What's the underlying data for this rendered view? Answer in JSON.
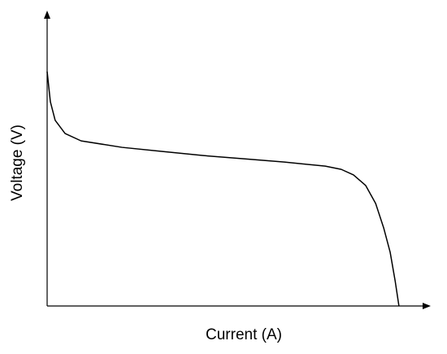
{
  "chart_data": {
    "type": "line",
    "x_label": "Current (A)",
    "y_label": "Voltage (V)",
    "x": [
      0,
      0.85,
      2.1,
      4.7,
      8.9,
      19.6,
      30.2,
      40.9,
      51.5,
      62.1,
      72.8,
      77.0,
      80.2,
      83.4,
      86.0,
      88.1,
      89.8,
      91.1,
      92.1
    ],
    "values": [
      79.8,
      69.5,
      63.2,
      58.7,
      56.2,
      54.0,
      52.6,
      51.2,
      50.1,
      49.0,
      47.6,
      46.5,
      44.6,
      41.0,
      34.9,
      26.6,
      18.3,
      8.6,
      0
    ],
    "color": "#000000",
    "xlim": [
      0,
      100
    ],
    "ylim": [
      0,
      100
    ]
  }
}
